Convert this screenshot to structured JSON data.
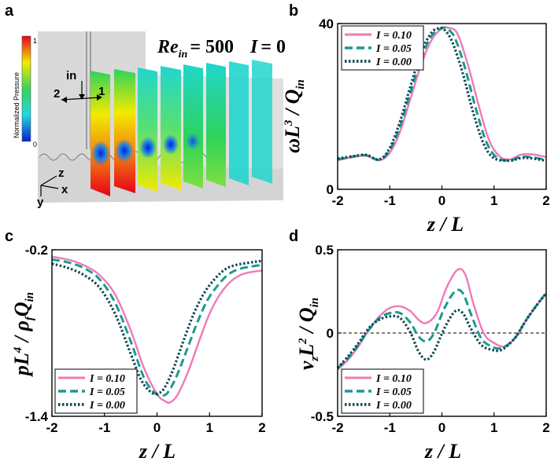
{
  "panel_a": {
    "label": "a",
    "re_label": "Re",
    "re_sub": "in",
    "re_value": "= 500",
    "i_label": "I",
    "i_value": "= 0",
    "colorbar_title": "Normalized Pressure",
    "colorbar_max": "1",
    "colorbar_min": "0",
    "inlet_label": "in",
    "outlet_1": "1",
    "outlet_2": "2",
    "axis_z": "z",
    "axis_x": "x",
    "axis_y": "y",
    "colors": {
      "red": "#e8001c",
      "yellow": "#f2ea00",
      "green": "#2ed35a",
      "cyan": "#21d6cd",
      "blue": "#0a2fd9",
      "grey": "#d4d4d4"
    }
  },
  "legend_labels": [
    "I = 0.10",
    "I = 0.05",
    "I = 0.00"
  ],
  "series_colors": [
    "#f07ab5",
    "#1b9a8e",
    "#0f4b57"
  ],
  "x_axis_label": "z / L",
  "chart_data": [
    {
      "id": "b",
      "type": "line",
      "panel_label": "b",
      "ylabel": "ωL³ / Q_in",
      "xlabel": "z / L",
      "xlim": [
        -2,
        2
      ],
      "ylim": [
        0,
        40
      ],
      "xticks": [
        "-2",
        "-1",
        "0",
        "1",
        "2"
      ],
      "yticks": [
        "0",
        "40"
      ],
      "legend": "top-left",
      "series": [
        {
          "name": "I = 0.10",
          "style": "solid",
          "x": [
            -2,
            -1.7,
            -1.45,
            -1.2,
            -1.0,
            -0.8,
            -0.6,
            -0.4,
            -0.2,
            0.0,
            0.15,
            0.3,
            0.5,
            0.7,
            0.9,
            1.1,
            1.3,
            1.5,
            1.7,
            2.0
          ],
          "y": [
            7.0,
            7.8,
            8.1,
            7.0,
            8.8,
            14.0,
            22.0,
            30.0,
            36.0,
            38.8,
            38.9,
            37.5,
            30.0,
            20.5,
            12.0,
            8.0,
            7.2,
            8.3,
            8.5,
            7.8
          ]
        },
        {
          "name": "I = 0.05",
          "style": "dashed",
          "x": [
            -2,
            -1.7,
            -1.45,
            -1.2,
            -1.0,
            -0.8,
            -0.6,
            -0.4,
            -0.2,
            0.0,
            0.1,
            0.25,
            0.45,
            0.65,
            0.85,
            1.05,
            1.3,
            1.5,
            1.7,
            2.0
          ],
          "y": [
            7.2,
            7.9,
            8.2,
            7.1,
            9.5,
            15.2,
            23.5,
            31.5,
            37.0,
            38.9,
            38.7,
            36.5,
            29.0,
            19.5,
            11.5,
            7.7,
            7.0,
            7.8,
            7.8,
            7.1
          ]
        },
        {
          "name": "I = 0.00",
          "style": "dotted",
          "x": [
            -2,
            -1.7,
            -1.45,
            -1.2,
            -1.0,
            -0.8,
            -0.6,
            -0.4,
            -0.2,
            -0.05,
            0.05,
            0.2,
            0.4,
            0.6,
            0.8,
            1.0,
            1.3,
            1.5,
            1.7,
            2.0
          ],
          "y": [
            7.4,
            8.0,
            8.3,
            7.2,
            10.0,
            16.5,
            25.0,
            33.0,
            37.8,
            38.9,
            38.5,
            35.5,
            28.0,
            18.5,
            11.0,
            7.5,
            6.9,
            7.5,
            7.5,
            6.9
          ]
        }
      ]
    },
    {
      "id": "c",
      "type": "line",
      "panel_label": "c",
      "ylabel": "pL⁴ / ρ_f Q_in",
      "xlabel": "z / L",
      "xlim": [
        -2,
        2
      ],
      "ylim": [
        -1.4,
        -0.2
      ],
      "xticks": [
        "-2",
        "-1",
        "0",
        "1",
        "2"
      ],
      "yticks": [
        "-1.4",
        "-0.2"
      ],
      "legend": "bottom-left",
      "series": [
        {
          "name": "I = 0.10",
          "style": "solid",
          "x": [
            -2,
            -1.7,
            -1.4,
            -1.1,
            -0.8,
            -0.5,
            -0.25,
            0.0,
            0.15,
            0.25,
            0.4,
            0.6,
            0.8,
            1.0,
            1.2,
            1.4,
            1.6,
            1.8,
            2.0
          ],
          "y": [
            -0.25,
            -0.27,
            -0.31,
            -0.38,
            -0.52,
            -0.78,
            -1.05,
            -1.24,
            -1.29,
            -1.3,
            -1.24,
            -1.07,
            -0.86,
            -0.66,
            -0.52,
            -0.43,
            -0.38,
            -0.36,
            -0.35
          ]
        },
        {
          "name": "I = 0.05",
          "style": "dashed",
          "x": [
            -2,
            -1.7,
            -1.4,
            -1.1,
            -0.8,
            -0.5,
            -0.25,
            -0.05,
            0.1,
            0.2,
            0.35,
            0.55,
            0.75,
            0.95,
            1.15,
            1.35,
            1.55,
            1.8,
            2.0
          ],
          "y": [
            -0.27,
            -0.29,
            -0.33,
            -0.41,
            -0.58,
            -0.86,
            -1.12,
            -1.23,
            -1.25,
            -1.23,
            -1.13,
            -0.94,
            -0.74,
            -0.57,
            -0.46,
            -0.38,
            -0.34,
            -0.32,
            -0.31
          ]
        },
        {
          "name": "I = 0.00",
          "style": "dotted",
          "x": [
            -2,
            -1.7,
            -1.4,
            -1.1,
            -0.8,
            -0.5,
            -0.3,
            -0.1,
            0.05,
            0.15,
            0.3,
            0.5,
            0.7,
            0.9,
            1.1,
            1.3,
            1.5,
            1.8,
            2.0
          ],
          "y": [
            -0.3,
            -0.33,
            -0.38,
            -0.47,
            -0.66,
            -0.95,
            -1.14,
            -1.23,
            -1.23,
            -1.19,
            -1.07,
            -0.86,
            -0.66,
            -0.51,
            -0.41,
            -0.34,
            -0.31,
            -0.29,
            -0.28
          ]
        }
      ]
    },
    {
      "id": "d",
      "type": "line",
      "panel_label": "d",
      "ylabel": "v_z L² / Q_in",
      "xlabel": "z / L",
      "xlim": [
        -2,
        2
      ],
      "ylim": [
        -0.5,
        0.5
      ],
      "xticks": [
        "-2",
        "-1",
        "0",
        "1",
        "2"
      ],
      "yticks": [
        "-0.5",
        "0",
        "0.5"
      ],
      "reference_line": 0,
      "legend": "bottom-left",
      "series": [
        {
          "name": "I = 0.10",
          "style": "solid",
          "x": [
            -2,
            -1.8,
            -1.6,
            -1.4,
            -1.2,
            -1.0,
            -0.8,
            -0.6,
            -0.45,
            -0.3,
            -0.1,
            0.1,
            0.3,
            0.45,
            0.6,
            0.8,
            1.0,
            1.2,
            1.4,
            1.6,
            1.8,
            2.0
          ],
          "y": [
            -0.22,
            -0.16,
            -0.08,
            0.02,
            0.1,
            0.15,
            0.16,
            0.13,
            0.08,
            0.06,
            0.12,
            0.28,
            0.38,
            0.35,
            0.18,
            0.0,
            -0.06,
            -0.08,
            -0.03,
            0.07,
            0.16,
            0.24
          ]
        },
        {
          "name": "I = 0.05",
          "style": "dashed",
          "x": [
            -2,
            -1.8,
            -1.6,
            -1.4,
            -1.2,
            -1.0,
            -0.8,
            -0.6,
            -0.45,
            -0.3,
            -0.15,
            0.05,
            0.25,
            0.4,
            0.55,
            0.75,
            0.95,
            1.15,
            1.4,
            1.6,
            1.8,
            2.0
          ],
          "y": [
            -0.21,
            -0.15,
            -0.07,
            0.02,
            0.09,
            0.12,
            0.12,
            0.06,
            -0.02,
            -0.05,
            0.0,
            0.15,
            0.25,
            0.24,
            0.12,
            -0.03,
            -0.08,
            -0.09,
            -0.03,
            0.07,
            0.16,
            0.24
          ]
        },
        {
          "name": "I = 0.00",
          "style": "dotted",
          "x": [
            -2,
            -1.8,
            -1.6,
            -1.4,
            -1.2,
            -1.0,
            -0.8,
            -0.6,
            -0.45,
            -0.3,
            -0.15,
            0.05,
            0.25,
            0.4,
            0.55,
            0.75,
            0.95,
            1.15,
            1.4,
            1.6,
            1.8,
            2.0
          ],
          "y": [
            -0.21,
            -0.14,
            -0.06,
            0.03,
            0.08,
            0.1,
            0.09,
            0.0,
            -0.11,
            -0.16,
            -0.11,
            0.03,
            0.13,
            0.12,
            0.03,
            -0.07,
            -0.1,
            -0.1,
            -0.03,
            0.07,
            0.16,
            0.24
          ]
        }
      ]
    }
  ]
}
